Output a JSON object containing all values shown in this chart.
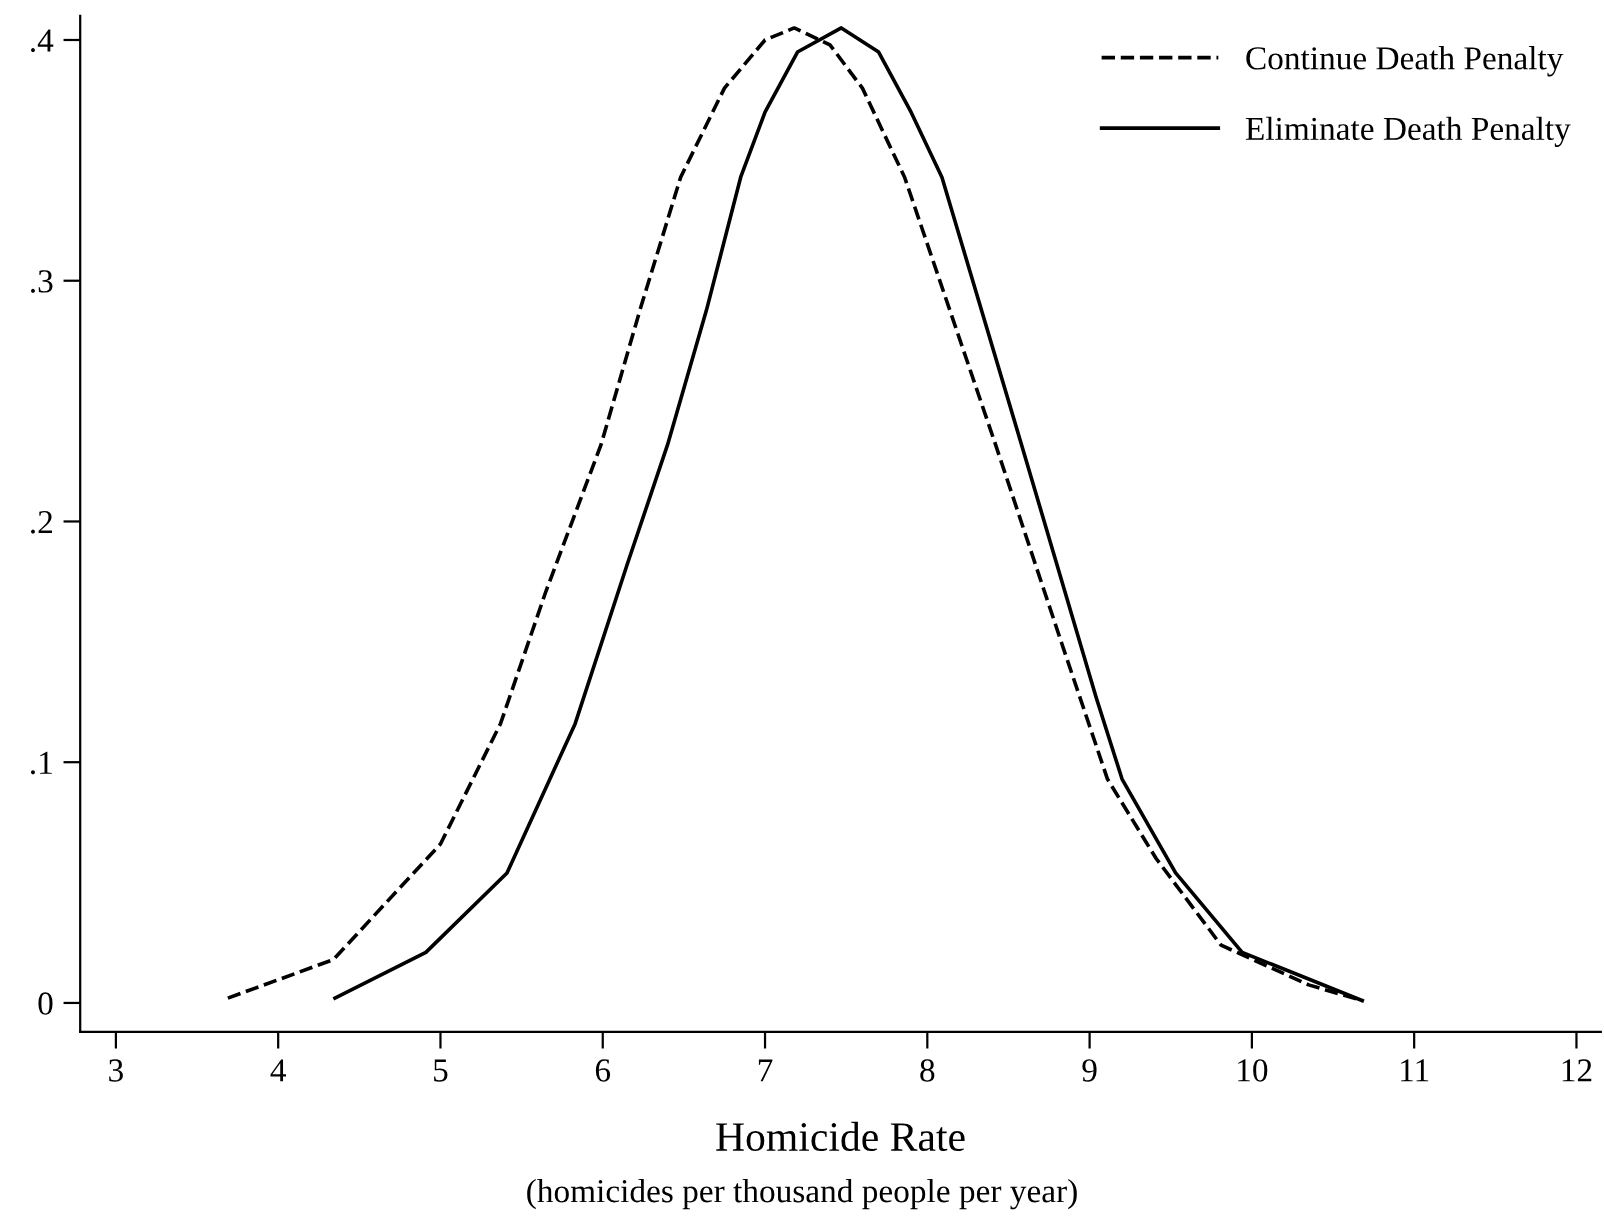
{
  "chart_data": {
    "type": "line",
    "xlabel": "Homicide Rate",
    "annotations": [
      "(homicides per thousand people per year)"
    ],
    "xlim": [
      2.78,
      12.15
    ],
    "ylim": [
      -0.012,
      0.41
    ],
    "xticks": [
      3,
      4,
      5,
      6,
      7,
      8,
      9,
      10,
      11,
      12
    ],
    "yticks": [
      {
        "value": 0,
        "label": "0"
      },
      {
        "value": 0.1,
        "label": ".1"
      },
      {
        "value": 0.2,
        "label": ".2"
      },
      {
        "value": 0.3,
        "label": ".3"
      },
      {
        "value": 0.4,
        "label": ".4"
      }
    ],
    "grid": false,
    "legend": "top right",
    "series": [
      {
        "name": "Continue Death Penalty",
        "color": "#000000",
        "line_style": "dashed",
        "x": [
          3.69,
          4.34,
          5.0,
          5.37,
          5.65,
          5.99,
          6.23,
          6.48,
          6.75,
          7.0,
          7.18,
          7.4,
          7.6,
          7.86,
          8.42,
          8.83,
          9.11,
          9.41,
          9.81,
          10.35,
          10.68
        ],
        "values": [
          0.002,
          0.018,
          0.066,
          0.116,
          0.171,
          0.232,
          0.288,
          0.343,
          0.38,
          0.4,
          0.405,
          0.398,
          0.38,
          0.343,
          0.232,
          0.149,
          0.093,
          0.06,
          0.024,
          0.0075,
          0.001
        ]
      },
      {
        "name": "Eliminate Death Penalty",
        "color": "#000000",
        "line_style": "solid",
        "x": [
          4.35,
          4.91,
          5.41,
          5.83,
          6.15,
          6.4,
          6.64,
          6.85,
          7.0,
          7.2,
          7.47,
          7.7,
          7.9,
          8.09,
          8.58,
          9.04,
          9.2,
          9.53,
          9.94,
          10.68
        ],
        "values": [
          0.002,
          0.021,
          0.054,
          0.116,
          0.182,
          0.232,
          0.288,
          0.343,
          0.37,
          0.395,
          0.405,
          0.395,
          0.37,
          0.343,
          0.232,
          0.127,
          0.093,
          0.054,
          0.021,
          0.001
        ]
      }
    ]
  }
}
